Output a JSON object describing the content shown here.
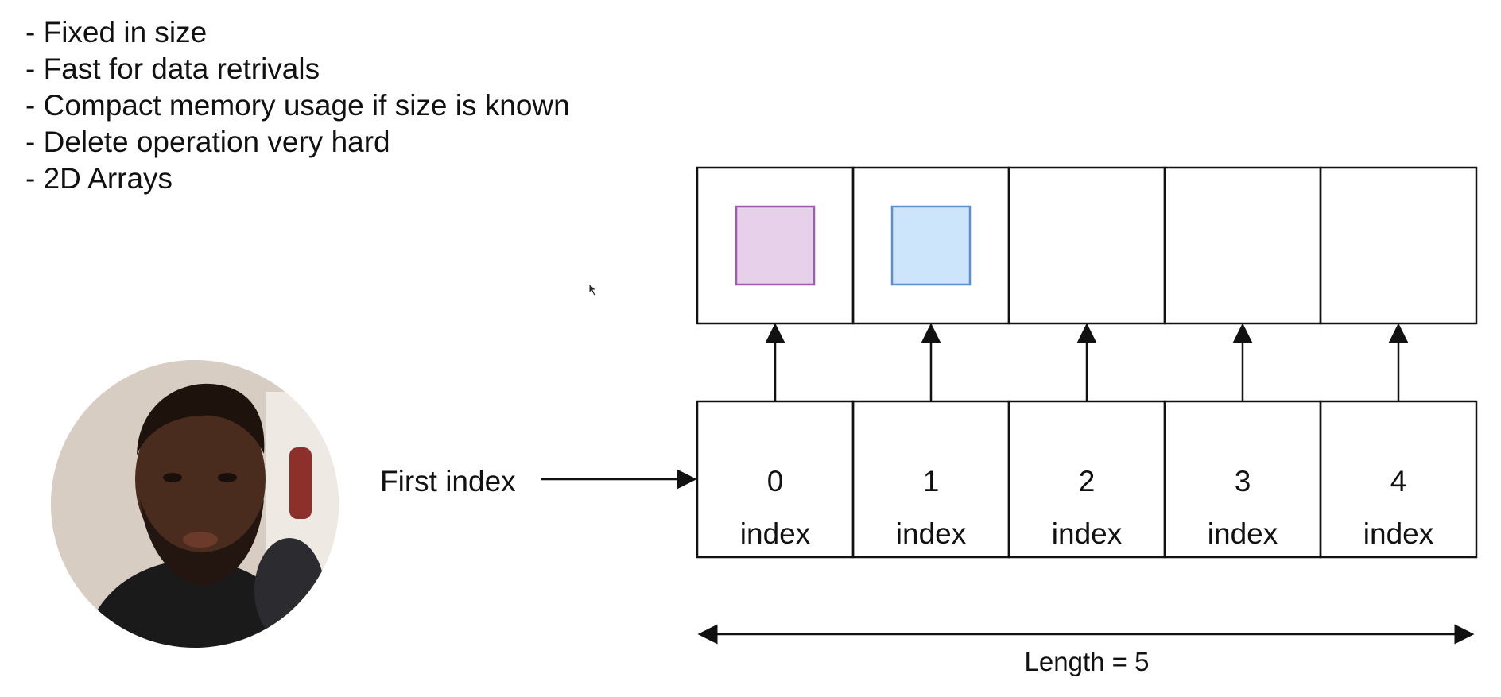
{
  "bullets": [
    "- Fixed in size",
    "- Fast for data retrivals",
    "- Compact memory usage if size is known",
    "- Delete operation very hard",
    "- 2D Arrays"
  ],
  "diagram": {
    "pointer_label": "First index",
    "cells": [
      {
        "number": "0",
        "label": "index",
        "filled": true,
        "fill": "#e6d0ea",
        "stroke": "#a05ab3"
      },
      {
        "number": "1",
        "label": "index",
        "filled": true,
        "fill": "#cce5fb",
        "stroke": "#5b8fd1"
      },
      {
        "number": "2",
        "label": "index",
        "filled": false
      },
      {
        "number": "3",
        "label": "index",
        "filled": false
      },
      {
        "number": "4",
        "label": "index",
        "filled": false
      }
    ],
    "length_label": "Length = 5"
  },
  "icons": {
    "cursor": "mouse-cursor-icon",
    "avatar": "presenter-avatar"
  }
}
